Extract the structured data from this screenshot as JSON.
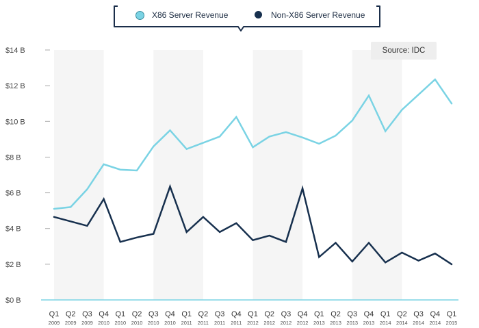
{
  "legend": {
    "items": [
      {
        "label": "X86 Server Revenue",
        "color": "#7ad3e4"
      },
      {
        "label": "Non-X86 Server Revenue",
        "color": "#17304e"
      }
    ]
  },
  "source_label": "Source: IDC",
  "chart_data": {
    "type": "line",
    "x_quarters": [
      "Q1",
      "Q2",
      "Q3",
      "Q4",
      "Q1",
      "Q2",
      "Q3",
      "Q4",
      "Q1",
      "Q2",
      "Q3",
      "Q4",
      "Q1",
      "Q2",
      "Q3",
      "Q4",
      "Q1",
      "Q2",
      "Q3",
      "Q4",
      "Q1",
      "Q2",
      "Q3",
      "Q4",
      "Q1"
    ],
    "x_years": [
      "2009",
      "2009",
      "2009",
      "2010",
      "2010",
      "2010",
      "2010",
      "2010",
      "2011",
      "2011",
      "2011",
      "2011",
      "2012",
      "2012",
      "2012",
      "2012",
      "2013",
      "2013",
      "2013",
      "2013",
      "2014",
      "2014",
      "2014",
      "2014",
      "2015"
    ],
    "y_ticks": [
      "$0 B",
      "$2 B",
      "$4 B",
      "$6 B",
      "$8 B",
      "$10 B",
      "$12 B",
      "$14 B"
    ],
    "ylim": [
      0,
      14
    ],
    "grid": false,
    "legend_position": "top-center",
    "series": [
      {
        "name": "X86 Server Revenue",
        "color": "#7ad3e4",
        "values": [
          5.1,
          5.2,
          6.2,
          7.6,
          7.3,
          7.25,
          8.6,
          9.5,
          8.45,
          8.8,
          9.15,
          10.25,
          8.55,
          9.15,
          9.4,
          9.1,
          8.75,
          9.2,
          10.05,
          11.45,
          9.45,
          10.65,
          11.5,
          12.35,
          11.0
        ]
      },
      {
        "name": "Non-X86 Server Revenue",
        "color": "#17304e",
        "values": [
          4.65,
          4.4,
          4.15,
          5.65,
          3.25,
          3.5,
          3.7,
          6.35,
          3.8,
          4.65,
          3.8,
          4.3,
          3.35,
          3.6,
          3.25,
          6.25,
          2.4,
          3.2,
          2.15,
          3.2,
          2.1,
          2.65,
          2.2,
          2.6,
          2.0
        ]
      }
    ]
  }
}
